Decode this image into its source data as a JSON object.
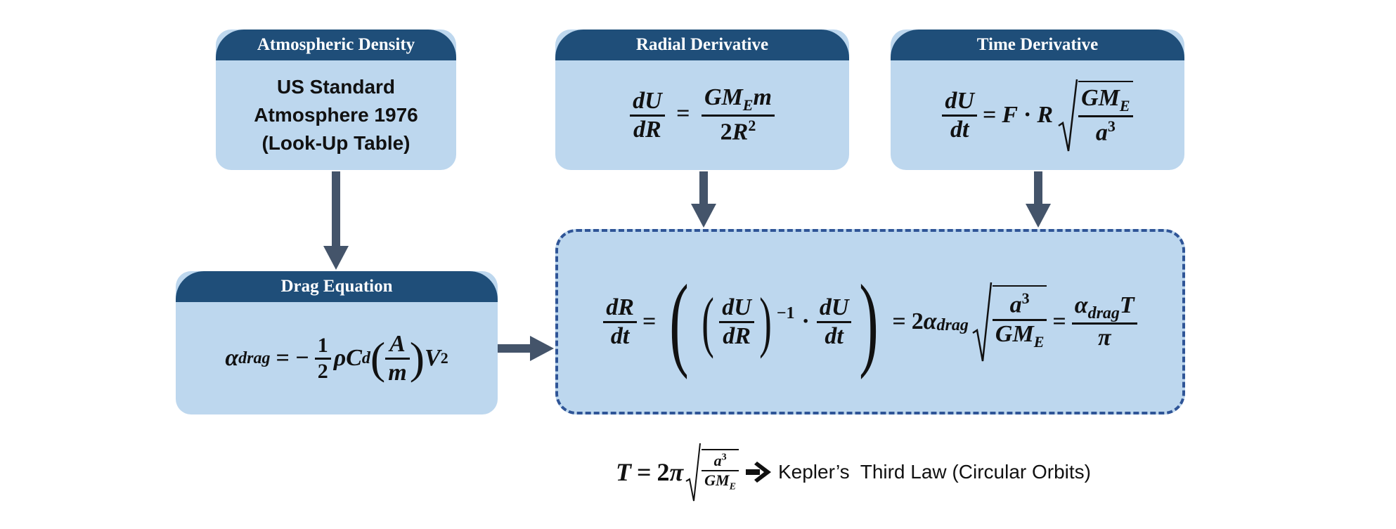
{
  "boxes": {
    "density": {
      "title": "Atmospheric Density",
      "lines": [
        "US Standard",
        "Atmosphere 1976",
        "(Look-Up Table)"
      ]
    },
    "radial": {
      "title": "Radial Derivative"
    },
    "time": {
      "title": "Time Derivative"
    },
    "drag": {
      "title": "Drag Equation"
    }
  },
  "equations": {
    "radial": "dU/dR = G M_E m / (2 R^2)",
    "time": "dU/dt = F · R √(G M_E / a^3)",
    "drag": "α_drag = −(1/2) ρ C_d (A/m) V^2",
    "main": "dR/dt = ((dU/dR)^−1 · dU/dt) = 2 α_drag √(a^3 / (G M_E)) = α_drag T / π",
    "kepler": "T = 2π √(a^3 / (G M_E))"
  },
  "footer": {
    "kepler_label": "Kepler’s  Third Law (Circular Orbits)"
  },
  "colors": {
    "header": "#1f4e79",
    "box_fill": "#bdd7ee",
    "arrow": "#44546a",
    "dashed_border": "#2f5597"
  }
}
